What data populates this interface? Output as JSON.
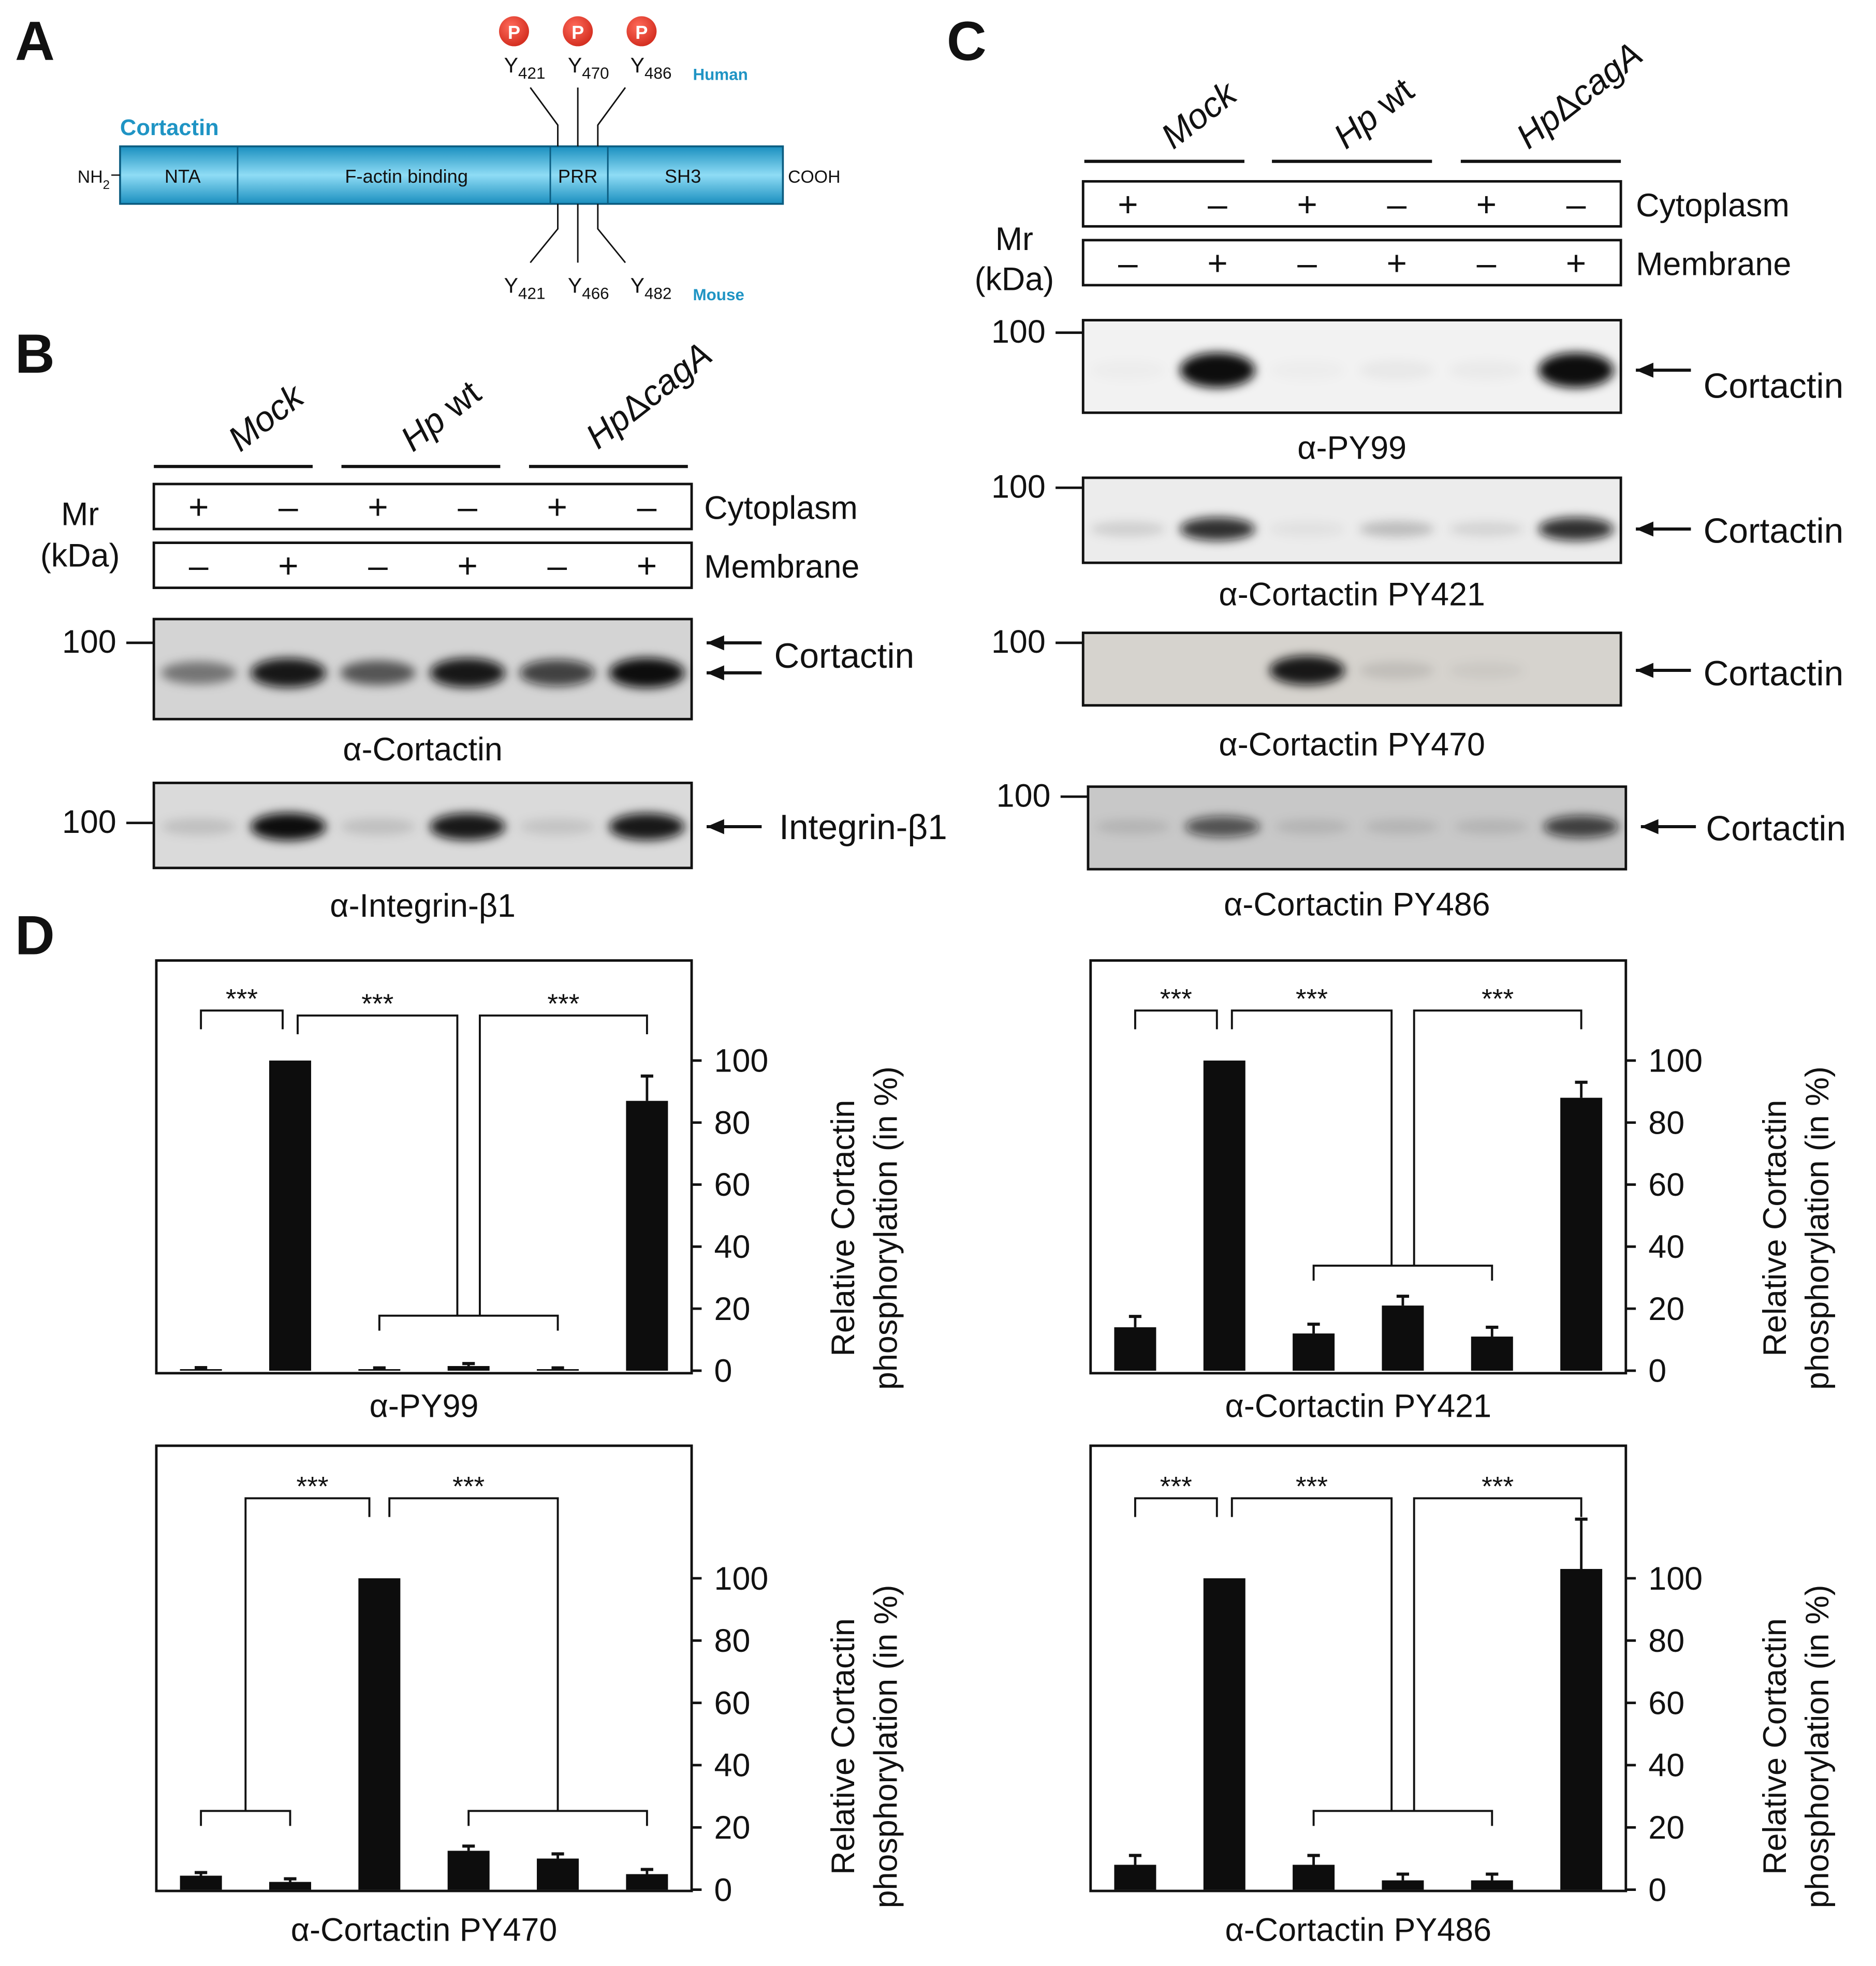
{
  "panels": {
    "a": "A",
    "b": "B",
    "c": "C",
    "d": "D"
  },
  "panel_a": {
    "protein": "Cortactin",
    "n_term": "NH",
    "n_term_sub": "2",
    "c_term": "COOH",
    "domains": [
      "NTA",
      "F-actin binding",
      "PRR",
      "SH3"
    ],
    "phospho": "P",
    "human_label": "Human",
    "mouse_label": "Mouse",
    "human_sites": [
      {
        "s": "421"
      },
      {
        "s": "470"
      },
      {
        "s": "486"
      }
    ],
    "mouse_sites": [
      {
        "s": "421"
      },
      {
        "s": "466"
      },
      {
        "s": "482"
      }
    ],
    "y": "Y"
  },
  "blot_common": {
    "groups": [
      "Mock",
      "Hp wt",
      "HpΔcagA"
    ],
    "hp": "Hp",
    "wt": " wt",
    "delta": "Δ",
    "caga": "cagA",
    "cytoplasm": "Cytoplasm",
    "membrane": "Membrane",
    "cyto_signs": [
      "+",
      "–",
      "+",
      "–",
      "+",
      "–"
    ],
    "memb_signs": [
      "–",
      "+",
      "–",
      "+",
      "–",
      "+"
    ],
    "mr": "Mr",
    "kda": "(kDa)",
    "marker": "100"
  },
  "panel_b": {
    "blots": [
      {
        "antibody": "α-Cortactin",
        "target": "Cortactin",
        "band_intensity": [
          0.45,
          0.95,
          0.6,
          0.95,
          0.75,
          1.0
        ]
      },
      {
        "antibody": "α-Integrin-β1",
        "target": "Integrin-β1",
        "band_intensity": [
          0.12,
          1.0,
          0.12,
          0.95,
          0.1,
          0.95
        ]
      }
    ]
  },
  "panel_c": {
    "blots": [
      {
        "antibody": "α-PY99",
        "target": "Cortactin",
        "band_intensity": [
          0.02,
          1.0,
          0.02,
          0.04,
          0.03,
          1.0
        ]
      },
      {
        "antibody": "α-Cortactin PY421",
        "target": "Cortactin",
        "band_intensity": [
          0.12,
          0.85,
          0.05,
          0.2,
          0.1,
          0.85
        ]
      },
      {
        "antibody": "α-Cortactin PY470",
        "target": "Cortactin",
        "band_intensity": [
          0.0,
          0.0,
          0.95,
          0.1,
          0.05,
          0.0
        ]
      },
      {
        "antibody": "α-Cortactin PY486",
        "target": "Cortactin",
        "band_intensity": [
          0.1,
          0.65,
          0.1,
          0.1,
          0.1,
          0.75
        ]
      }
    ]
  },
  "panel_d": {
    "ylabel_line1": "Relative Cortactin",
    "ylabel_line2": "phosphorylation (in %)",
    "sig": "***"
  },
  "chart_data": [
    {
      "type": "bar",
      "title": "α-PY99",
      "ylabel": "Relative Cortactin phosphorylation (in %)",
      "yticks": [
        "100",
        "80",
        "60",
        "40",
        "20",
        "0"
      ],
      "ylim": [
        0,
        100
      ],
      "values": [
        0.5,
        100,
        0.5,
        1.5,
        0.5,
        87
      ],
      "errors": [
        0.5,
        0,
        0.4,
        0.8,
        0.4,
        8
      ]
    },
    {
      "type": "bar",
      "title": "α-Cortactin PY421",
      "ylabel": "Relative Cortactin phosphorylation (in %)",
      "yticks": [
        "100",
        "80",
        "60",
        "40",
        "20",
        "0"
      ],
      "ylim": [
        0,
        100
      ],
      "values": [
        14,
        100,
        12,
        21,
        11,
        88
      ],
      "errors": [
        3.5,
        0,
        3,
        3,
        3,
        5
      ]
    },
    {
      "type": "bar",
      "title": "α-Cortactin PY470",
      "ylabel": "Relative Cortactin phosphorylation (in %)",
      "yticks": [
        "100",
        "80",
        "60",
        "40",
        "20",
        "0"
      ],
      "ylim": [
        0,
        100
      ],
      "values": [
        4.5,
        2.5,
        100,
        12.5,
        10,
        5
      ],
      "errors": [
        1,
        1,
        0,
        1.5,
        1.5,
        1.5
      ]
    },
    {
      "type": "bar",
      "title": "α-Cortactin PY486",
      "ylabel": "Relative Cortactin phosphorylation (in %)",
      "yticks": [
        "100",
        "80",
        "60",
        "40",
        "20",
        "0"
      ],
      "ylim": [
        0,
        100
      ],
      "values": [
        8,
        100,
        8,
        3,
        3,
        103
      ],
      "errors": [
        3,
        0,
        3,
        2,
        2,
        16
      ]
    }
  ]
}
